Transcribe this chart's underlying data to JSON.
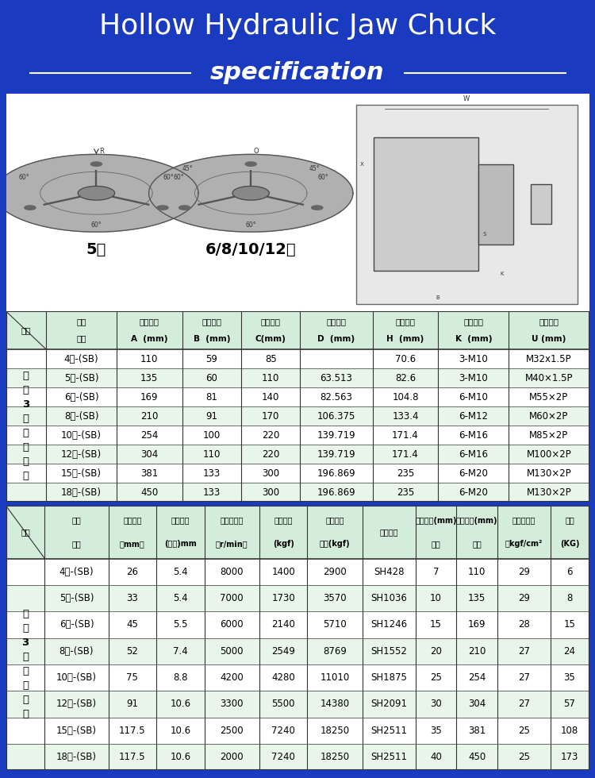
{
  "title_line1": "Hollow Hydraulic Jaw Chuck",
  "title_line2": "specification",
  "bg_color": "#1a3bbf",
  "header_bg": "#d4edda",
  "row_alt_bg": "#e8f5e9",
  "row_white_bg": "#ffffff",
  "border_color": "#333333",
  "table1_category_header": [
    "名称",
    "尺寸\n型号",
    "卡盘外径\nA  (mm)",
    "盘体高度\nB  (mm)",
    "卡盘止口\nC(mm)",
    "主轴锥度\nD  (mm)",
    "螺丝孔距\nH  (mm)",
    "安装螺丝\nK  (mm)",
    "拉杆螺纹\nU (mm)"
  ],
  "table1_left_label": "中\n空\n3\n爪\n液\n压\n卡\n盘",
  "table1_rows": [
    [
      "4寸-(SB)",
      "110",
      "59",
      "85",
      "",
      "70.6",
      "3-M10",
      "M32x1.5P"
    ],
    [
      "5寸-(SB)",
      "135",
      "60",
      "110",
      "63.513",
      "82.6",
      "3-M10",
      "M40×1.5P"
    ],
    [
      "6寸-(SB)",
      "169",
      "81",
      "140",
      "82.563",
      "104.8",
      "6-M10",
      "M55×2P"
    ],
    [
      "8寸-(SB)",
      "210",
      "91",
      "170",
      "106.375",
      "133.4",
      "6-M12",
      "M60×2P"
    ],
    [
      "10寸-(SB)",
      "254",
      "100",
      "220",
      "139.719",
      "171.4",
      "6-M16",
      "M85×2P"
    ],
    [
      "12寸-(SB)",
      "304",
      "110",
      "220",
      "139.719",
      "171.4",
      "6-M16",
      "M100×2P"
    ],
    [
      "15寸-(SB)",
      "381",
      "133",
      "300",
      "196.869",
      "235",
      "6-M20",
      "M130×2P"
    ],
    [
      "18寸-(SB)",
      "450",
      "133",
      "300",
      "196.869",
      "235",
      "6-M20",
      "M130×2P"
    ]
  ],
  "table2_category_header": [
    "名称",
    "尺寸\n型号",
    "通孔直径\n（mm）",
    "卡爪行程\n(直径)mm",
    "最高回转速\n（r/min）",
    "最大拉力\n(kgf)",
    "最大静夹\n持力(kgf)",
    "推荐油缸",
    "夹持范围(mm)\n最小",
    "夹持范围(mm)\n最大",
    "最高使用压\n力kgf/cm²",
    "重量\n(KG)"
  ],
  "table2_left_label": "中\n空\n3\n爪\n液\n压\n卡\n盘",
  "table2_rows": [
    [
      "4寸-(SB)",
      "26",
      "5.4",
      "8000",
      "1400",
      "2900",
      "SH428",
      "7",
      "110",
      "29",
      "6"
    ],
    [
      "5寸-(SB)",
      "33",
      "5.4",
      "7000",
      "1730",
      "3570",
      "SH1036",
      "10",
      "135",
      "29",
      "8"
    ],
    [
      "6寸-(SB)",
      "45",
      "5.5",
      "6000",
      "2140",
      "5710",
      "SH1246",
      "15",
      "169",
      "28",
      "15"
    ],
    [
      "8寸-(SB)",
      "52",
      "7.4",
      "5000",
      "2549",
      "8769",
      "SH1552",
      "20",
      "210",
      "27",
      "24"
    ],
    [
      "10寸-(SB)",
      "75",
      "8.8",
      "4200",
      "4280",
      "11010",
      "SH1875",
      "25",
      "254",
      "27",
      "35"
    ],
    [
      "12寸-(SB)",
      "91",
      "10.6",
      "3300",
      "5500",
      "14380",
      "SH2091",
      "30",
      "304",
      "27",
      "57"
    ],
    [
      "15寸-(SB)",
      "117.5",
      "10.6",
      "2500",
      "7240",
      "18250",
      "SH2511",
      "35",
      "381",
      "25",
      "108"
    ],
    [
      "18寸-(SB)",
      "117.5",
      "10.6",
      "2000",
      "7240",
      "18250",
      "SH2511",
      "40",
      "450",
      "25",
      "173"
    ]
  ]
}
